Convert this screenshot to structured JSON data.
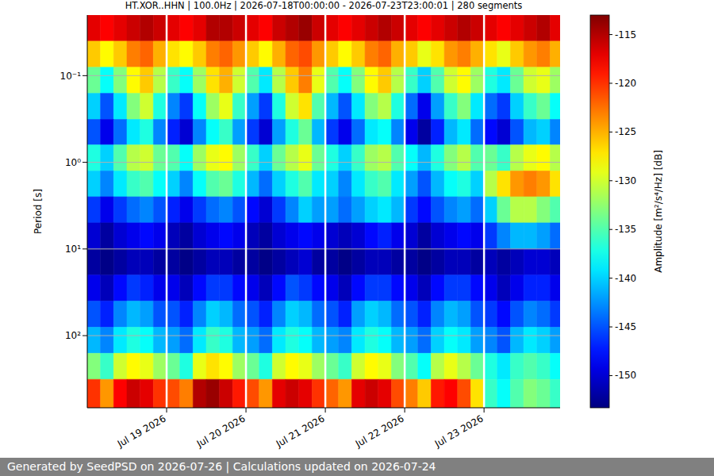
{
  "chart_data": {
    "type": "heatmap",
    "title": "HT.XOR..HHN | 100.0Hz | 2026-07-18T00:00:00 - 2026-07-23T23:00:01 | 280 segments",
    "ylabel": "Period [s]",
    "footer": "Generated by SeedPSD on 2026-07-26 | Calculations updated on 2026-07-24",
    "log": "y",
    "grid": true,
    "x": [
      "2026-07-18T00:00:00",
      "2026-07-18T04:00:00",
      "2026-07-18T08:00:00",
      "2026-07-18T12:00:00",
      "2026-07-18T16:00:00",
      "2026-07-18T20:00:00",
      "2026-07-19T00:00:00",
      "2026-07-19T04:00:00",
      "2026-07-19T08:00:00",
      "2026-07-19T12:00:00",
      "2026-07-19T16:00:00",
      "2026-07-19T20:00:00",
      "2026-07-20T00:00:00",
      "2026-07-20T04:00:00",
      "2026-07-20T08:00:00",
      "2026-07-20T12:00:00",
      "2026-07-20T16:00:00",
      "2026-07-20T20:00:00",
      "2026-07-21T00:00:00",
      "2026-07-21T04:00:00",
      "2026-07-21T08:00:00",
      "2026-07-21T12:00:00",
      "2026-07-21T16:00:00",
      "2026-07-21T20:00:00",
      "2026-07-22T00:00:00",
      "2026-07-22T04:00:00",
      "2026-07-22T08:00:00",
      "2026-07-22T12:00:00",
      "2026-07-22T16:00:00",
      "2026-07-22T20:00:00",
      "2026-07-23T00:00:00",
      "2026-07-23T04:00:00",
      "2026-07-23T08:00:00",
      "2026-07-23T12:00:00",
      "2026-07-23T16:00:00",
      "2026-07-23T20:00:00"
    ],
    "xlim": [
      "2026-07-18T00:00:00",
      "2026-07-23T23:00:01"
    ],
    "xticks": [
      {
        "value": "2026-07-19T00:00:00",
        "label": "Jul 19 2026"
      },
      {
        "value": "2026-07-20T00:00:00",
        "label": "Jul 20 2026"
      },
      {
        "value": "2026-07-21T00:00:00",
        "label": "Jul 21 2026"
      },
      {
        "value": "2026-07-22T00:00:00",
        "label": "Jul 22 2026"
      },
      {
        "value": "2026-07-23T00:00:00",
        "label": "Jul 23 2026"
      }
    ],
    "y_edges": [
      0.02,
      0.04,
      0.08,
      0.16,
      0.32,
      0.63,
      1.26,
      2.5,
      5,
      10,
      20,
      40,
      80,
      160,
      320,
      680
    ],
    "ylim": [
      0.02,
      680
    ],
    "yticks": [
      {
        "value": 0.1,
        "label": "10⁻¹"
      },
      {
        "value": 1,
        "label": "10⁰"
      },
      {
        "value": 10,
        "label": "10¹"
      },
      {
        "value": 100,
        "label": "10²"
      }
    ],
    "cells": [
      [
        -117,
        -118,
        -117,
        -116,
        -115,
        -116,
        -117,
        -118,
        -117,
        -115,
        -115,
        -116,
        -117,
        -118,
        -116,
        -115,
        -114,
        -116,
        -117,
        -118,
        -117,
        -116,
        -115,
        -116,
        -117,
        -118,
        -117,
        -116,
        -115,
        -116,
        -117,
        -118,
        -117,
        -116,
        -115,
        -117
      ],
      [
        -126,
        -128,
        -126,
        -123,
        -122,
        -125,
        -127,
        -128,
        -126,
        -123,
        -122,
        -124,
        -126,
        -128,
        -125,
        -122,
        -121,
        -124,
        -126,
        -128,
        -126,
        -123,
        -122,
        -125,
        -126,
        -129,
        -127,
        -124,
        -123,
        -125,
        -127,
        -129,
        -126,
        -124,
        -123,
        -125
      ],
      [
        -134,
        -138,
        -133,
        -128,
        -126,
        -131,
        -136,
        -138,
        -132,
        -127,
        -125,
        -130,
        -135,
        -139,
        -131,
        -126,
        -123,
        -129,
        -135,
        -138,
        -133,
        -128,
        -126,
        -131,
        -136,
        -140,
        -135,
        -130,
        -128,
        -132,
        -137,
        -139,
        -134,
        -130,
        -129,
        -132
      ],
      [
        -140,
        -145,
        -139,
        -133,
        -130,
        -137,
        -143,
        -146,
        -138,
        -132,
        -129,
        -136,
        -142,
        -146,
        -137,
        -130,
        -127,
        -135,
        -141,
        -145,
        -139,
        -133,
        -131,
        -137,
        -144,
        -149,
        -142,
        -136,
        -133,
        -139,
        -144,
        -146,
        -140,
        -136,
        -134,
        -138
      ],
      [
        -145,
        -149,
        -144,
        -139,
        -137,
        -143,
        -147,
        -150,
        -143,
        -138,
        -136,
        -142,
        -146,
        -150,
        -142,
        -137,
        -134,
        -141,
        -146,
        -149,
        -144,
        -139,
        -138,
        -143,
        -149,
        -152,
        -147,
        -141,
        -139,
        -144,
        -148,
        -150,
        -145,
        -141,
        -140,
        -143
      ],
      [
        -137,
        -140,
        -135,
        -131,
        -130,
        -134,
        -135,
        -138,
        -132,
        -129,
        -128,
        -132,
        -136,
        -140,
        -134,
        -131,
        -129,
        -134,
        -137,
        -140,
        -136,
        -132,
        -131,
        -135,
        -138,
        -141,
        -137,
        -133,
        -131,
        -135,
        -134,
        -136,
        -131,
        -129,
        -128,
        -131
      ],
      [
        -140,
        -143,
        -139,
        -136,
        -135,
        -138,
        -140,
        -143,
        -138,
        -135,
        -134,
        -137,
        -141,
        -144,
        -140,
        -137,
        -135,
        -139,
        -140,
        -143,
        -139,
        -136,
        -135,
        -139,
        -142,
        -145,
        -141,
        -138,
        -137,
        -140,
        -131,
        -127,
        -124,
        -123,
        -124,
        -127
      ],
      [
        -146,
        -149,
        -146,
        -144,
        -143,
        -145,
        -147,
        -149,
        -146,
        -144,
        -143,
        -145,
        -148,
        -150,
        -146,
        -143,
        -140,
        -142,
        -142,
        -144,
        -142,
        -140,
        -139,
        -141,
        -146,
        -148,
        -145,
        -143,
        -142,
        -144,
        -140,
        -134,
        -131,
        -131,
        -133,
        -135
      ],
      [
        -150,
        -152,
        -150,
        -149,
        -148,
        -149,
        -151,
        -152,
        -150,
        -149,
        -148,
        -149,
        -151,
        -152,
        -150,
        -149,
        -148,
        -149,
        -150,
        -151,
        -150,
        -148,
        -147,
        -149,
        -150,
        -152,
        -150,
        -149,
        -148,
        -149,
        -146,
        -143,
        -141,
        -141,
        -142,
        -144
      ],
      [
        -152,
        -153,
        -152,
        -151,
        -151,
        -152,
        -152,
        -153,
        -152,
        -151,
        -151,
        -152,
        -152,
        -153,
        -152,
        -151,
        -150,
        -152,
        -152,
        -153,
        -152,
        -151,
        -151,
        -152,
        -152,
        -153,
        -152,
        -151,
        -151,
        -152,
        -151,
        -152,
        -151,
        -150,
        -150,
        -151
      ],
      [
        -149,
        -151,
        -148,
        -146,
        -147,
        -149,
        -149,
        -151,
        -148,
        -146,
        -146,
        -148,
        -149,
        -151,
        -148,
        -145,
        -146,
        -148,
        -149,
        -151,
        -148,
        -146,
        -146,
        -148,
        -149,
        -151,
        -148,
        -146,
        -146,
        -148,
        -149,
        -151,
        -149,
        -147,
        -147,
        -149
      ],
      [
        -145,
        -147,
        -143,
        -141,
        -142,
        -145,
        -145,
        -147,
        -143,
        -140,
        -141,
        -144,
        -145,
        -147,
        -143,
        -140,
        -141,
        -144,
        -145,
        -147,
        -142,
        -140,
        -141,
        -144,
        -145,
        -147,
        -143,
        -141,
        -142,
        -145,
        -146,
        -148,
        -145,
        -143,
        -144,
        -146
      ],
      [
        -141,
        -143,
        -139,
        -137,
        -138,
        -141,
        -142,
        -144,
        -139,
        -136,
        -137,
        -141,
        -142,
        -144,
        -139,
        -137,
        -138,
        -141,
        -142,
        -143,
        -139,
        -137,
        -138,
        -141,
        -142,
        -144,
        -140,
        -138,
        -139,
        -142,
        -143,
        -145,
        -141,
        -139,
        -140,
        -142
      ],
      [
        -133,
        -136,
        -130,
        -128,
        -129,
        -132,
        -134,
        -137,
        -129,
        -127,
        -128,
        -132,
        -134,
        -137,
        -130,
        -128,
        -129,
        -132,
        -134,
        -136,
        -130,
        -128,
        -129,
        -133,
        -135,
        -138,
        -131,
        -129,
        -131,
        -134,
        -137,
        -139,
        -136,
        -135,
        -136,
        -138
      ],
      [
        -120,
        -124,
        -118,
        -116,
        -117,
        -120,
        -121,
        -123,
        -115,
        -114,
        -116,
        -119,
        -121,
        -124,
        -117,
        -116,
        -117,
        -120,
        -122,
        -124,
        -117,
        -116,
        -117,
        -121,
        -123,
        -126,
        -119,
        -118,
        -121,
        -127,
        -136,
        -138,
        -135,
        -133,
        -134,
        -136
      ]
    ],
    "colorbar": {
      "label": "Amplitude [m²/s⁴/Hz] [dB]",
      "range": [
        -153.3,
        -113
      ],
      "ticks": [
        -115,
        -120,
        -125,
        -130,
        -135,
        -140,
        -145,
        -150
      ]
    }
  }
}
